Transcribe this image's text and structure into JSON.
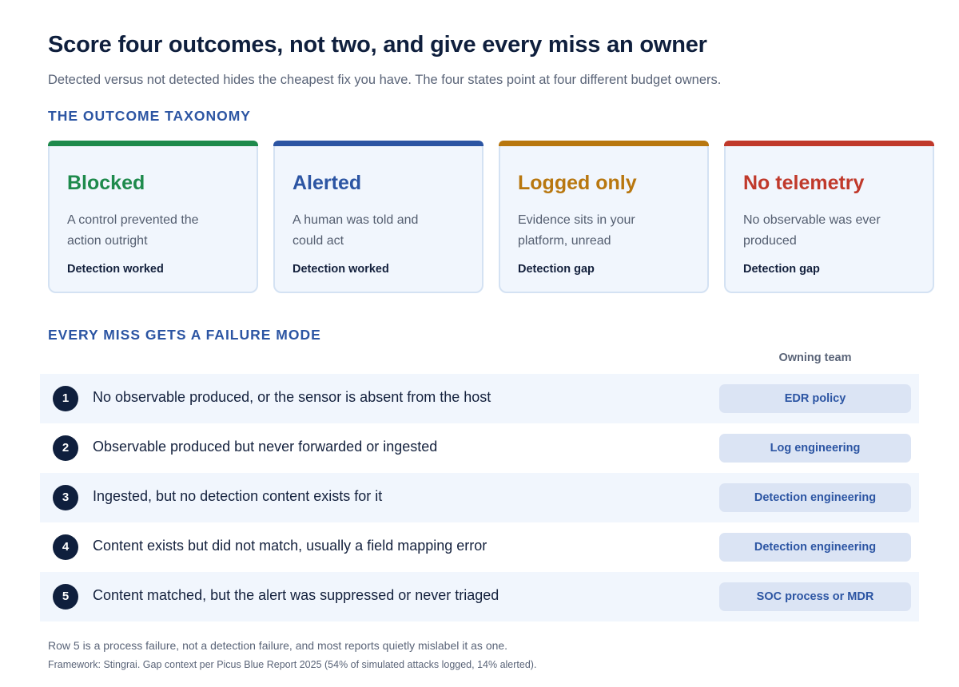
{
  "header": {
    "title": "Score four outcomes, not two, and give every miss an owner",
    "subtitle": "Detected versus not detected hides the cheapest fix you have. The four states point at four different budget owners."
  },
  "taxonomy": {
    "heading": "THE OUTCOME TAXONOMY",
    "cards": [
      {
        "title": "Blocked",
        "desc": "A control prevented the action outright",
        "status": "Detection worked",
        "color": "#1e8a4c"
      },
      {
        "title": "Alerted",
        "desc": "A human was told and could act",
        "status": "Detection worked",
        "color": "#2c55a3"
      },
      {
        "title": "Logged only",
        "desc": "Evidence sits in your platform, unread",
        "status": "Detection gap",
        "color": "#b8770f"
      },
      {
        "title": "No telemetry",
        "desc": "No observable was ever produced",
        "status": "Detection gap",
        "color": "#c0392b"
      }
    ]
  },
  "failure_modes": {
    "heading": "EVERY MISS GETS A FAILURE MODE",
    "owner_header": "Owning team",
    "rows": [
      {
        "num": "1",
        "text": "No observable produced, or the sensor is absent from the host",
        "owner": "EDR policy"
      },
      {
        "num": "2",
        "text": "Observable produced but never forwarded or ingested",
        "owner": "Log engineering"
      },
      {
        "num": "3",
        "text": "Ingested, but no detection content exists for it",
        "owner": "Detection engineering"
      },
      {
        "num": "4",
        "text": "Content exists but did not match, usually a field mapping error",
        "owner": "Detection engineering"
      },
      {
        "num": "5",
        "text": "Content matched, but the alert was suppressed or never triaged",
        "owner": "SOC process or MDR"
      }
    ]
  },
  "footer": {
    "note": "Row 5 is a process failure, not a detection failure, and most reports quietly mislabel it as one.",
    "source": "Framework: Stingrai. Gap context per Picus Blue Report 2025 (54% of simulated attacks logged, 14% alerted)."
  }
}
